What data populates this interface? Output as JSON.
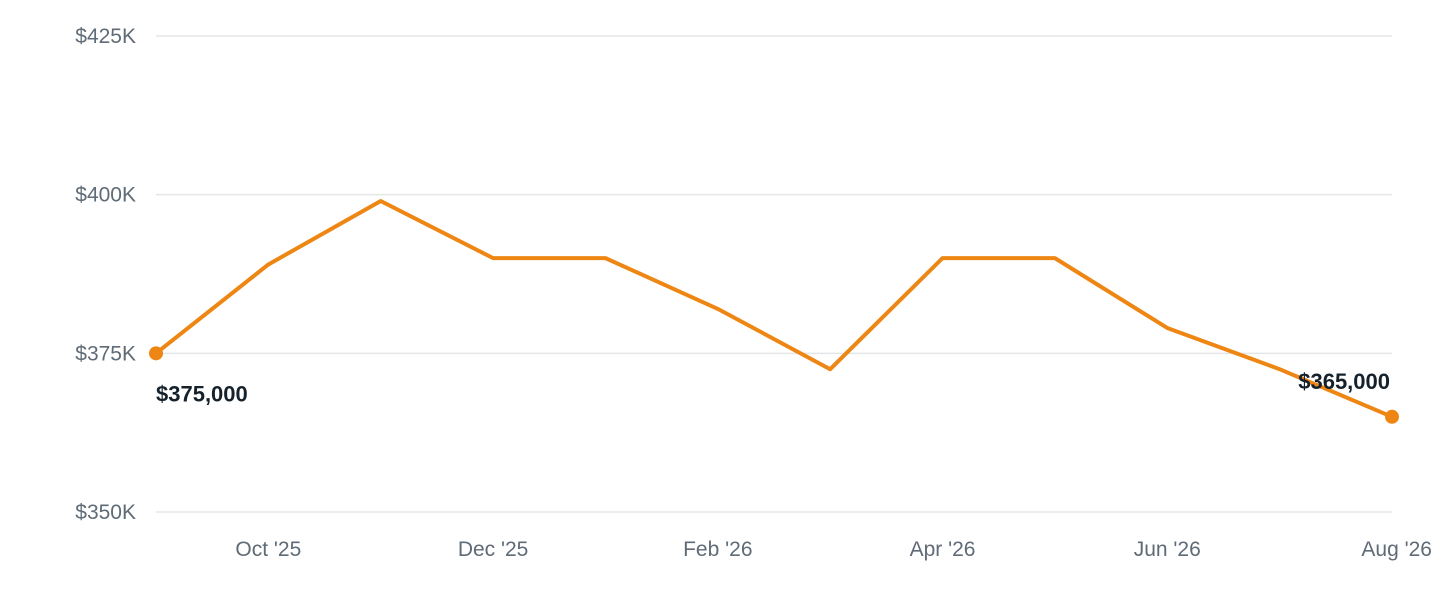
{
  "chart_data": {
    "type": "line",
    "x": [
      "2025-09",
      "2025-10",
      "2025-11",
      "2025-12",
      "2026-01",
      "2026-02",
      "2026-03",
      "2026-04",
      "2026-05",
      "2026-06",
      "2026-07",
      "2026-08"
    ],
    "series": [
      {
        "values": [
          375000,
          389000,
          399000,
          390000,
          390000,
          382000,
          372500,
          390000,
          390000,
          379000,
          372500,
          365000
        ],
        "color": "#ee8614"
      }
    ],
    "ylim": [
      350000,
      425000
    ],
    "y_ticks": [
      {
        "value": 350000,
        "label": "$350K"
      },
      {
        "value": 375000,
        "label": "$375K"
      },
      {
        "value": 400000,
        "label": "$400K"
      },
      {
        "value": 425000,
        "label": "$425K"
      }
    ],
    "x_ticks": [
      {
        "x": "2025-10",
        "label": "Oct '25"
      },
      {
        "x": "2025-12",
        "label": "Dec '25"
      },
      {
        "x": "2026-02",
        "label": "Feb '26"
      },
      {
        "x": "2026-04",
        "label": "Apr '26"
      },
      {
        "x": "2026-06",
        "label": "Jun '26"
      },
      {
        "x": "2026-08",
        "label": "Aug '26"
      }
    ],
    "annotations": [
      {
        "x": "2025-09",
        "label": "$375,000"
      },
      {
        "x": "2026-08",
        "label": "$365,000"
      }
    ],
    "grid": true,
    "legend": "none",
    "xlabel": "",
    "ylabel": "",
    "title": ""
  }
}
